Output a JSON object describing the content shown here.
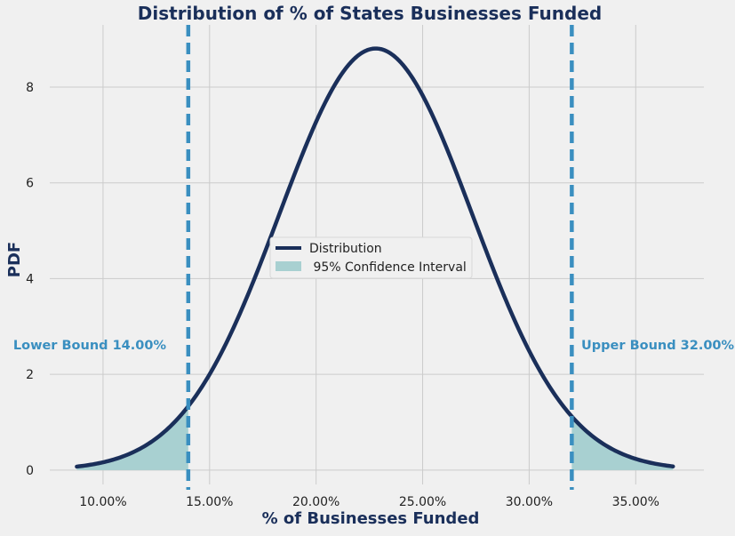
{
  "chart_data": {
    "type": "line",
    "title": "Distribution of % of States Businesses Funded",
    "xlabel": "% of Businesses Funded",
    "ylabel": "PDF",
    "xlim": [
      0.075,
      0.382
    ],
    "ylim": [
      -0.3,
      9.3
    ],
    "x_ticks": [
      0.1,
      0.15,
      0.2,
      0.25,
      0.3,
      0.35
    ],
    "x_tick_labels": [
      "10.00%",
      "15.00%",
      "20.00%",
      "25.00%",
      "30.00%",
      "35.00%"
    ],
    "y_ticks": [
      0,
      2,
      4,
      6,
      8
    ],
    "y_tick_labels": [
      "0",
      "2",
      "4",
      "6",
      "8"
    ],
    "grid": true,
    "distribution": {
      "type": "normal",
      "mean": 0.228,
      "std": 0.0453,
      "x_min": 0.0877,
      "x_max": 0.3675
    },
    "bounds": {
      "lower": 0.14,
      "upper": 0.32,
      "lower_label": "Lower Bound 14.00%",
      "upper_label": "Upper Bound 32.00%"
    },
    "series": [
      {
        "name": "Distribution",
        "kind": "line"
      },
      {
        "name": " 95% Confidence Interval",
        "kind": "fill"
      }
    ],
    "legend_position": "center",
    "colors": {
      "line": "#1a2f5a",
      "fill": "#a8d0d1",
      "bound": "#3a8fc0",
      "title": "#1a2f5a",
      "bound_text": "#3a8fc0",
      "grid": "#cbcbcb",
      "background": "#f0f0f0"
    }
  }
}
